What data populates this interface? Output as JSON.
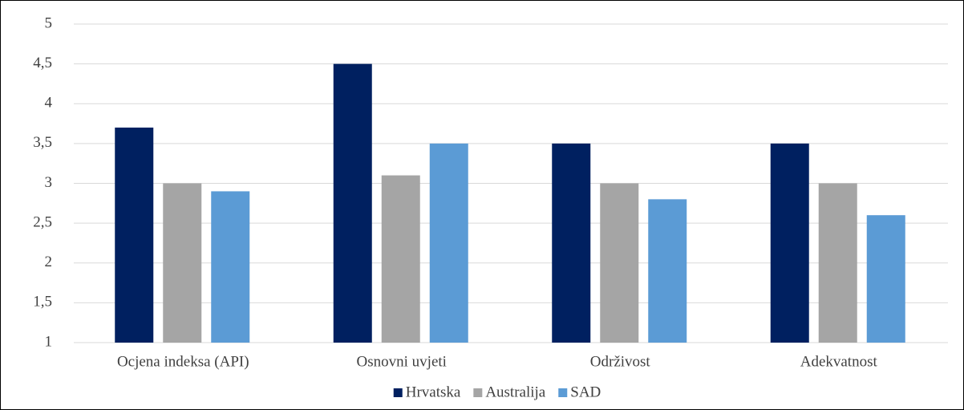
{
  "chart_data": {
    "type": "bar",
    "categories": [
      "Ocjena indeksa (API)",
      "Osnovni uvjeti",
      "Održivost",
      "Adekvatnost"
    ],
    "series": [
      {
        "name": "Hrvatska",
        "color": "#002060",
        "values": [
          3.7,
          4.5,
          3.5,
          3.5
        ]
      },
      {
        "name": "Australija",
        "color": "#a5a5a5",
        "values": [
          3.0,
          3.1,
          3.0,
          3.0
        ]
      },
      {
        "name": "SAD",
        "color": "#5b9bd5",
        "values": [
          2.9,
          3.5,
          2.8,
          2.6
        ]
      }
    ],
    "ylim": [
      1,
      5
    ],
    "yticks": [
      1,
      {
        "value": 1.5,
        "label": "1,5"
      },
      2,
      {
        "value": 2.5,
        "label": "2,5"
      },
      3,
      {
        "value": 3.5,
        "label": "3,5"
      },
      4,
      {
        "value": 4.5,
        "label": "4,5"
      },
      5
    ],
    "grid": true,
    "legend": "bottom"
  }
}
